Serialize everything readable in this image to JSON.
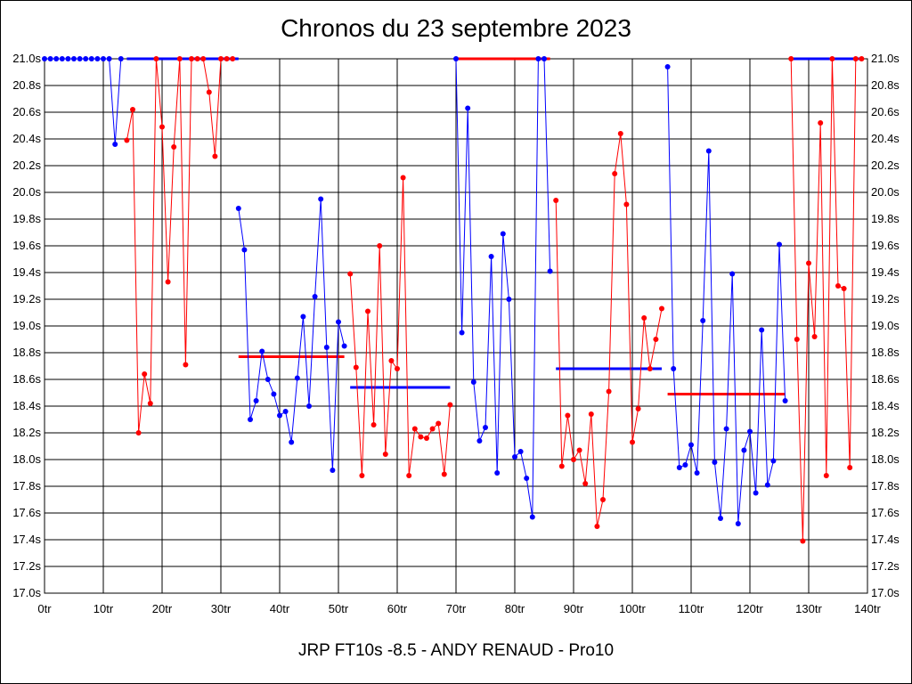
{
  "chart_data": {
    "type": "line",
    "title": "Chronos du 23 septembre 2023",
    "footer": "JRP FT10s -8.5 - ANDY RENAUD - Pro10",
    "xlabel": "",
    "ylabel": "",
    "x_unit_suffix": "tr",
    "y_unit_suffix": "s",
    "xlim": [
      0,
      140
    ],
    "ylim": [
      17.0,
      21.0
    ],
    "x_ticks": [
      "0tr",
      "10tr",
      "20tr",
      "30tr",
      "40tr",
      "50tr",
      "60tr",
      "70tr",
      "80tr",
      "90tr",
      "100tr",
      "110tr",
      "120tr",
      "130tr",
      "140tr"
    ],
    "y_ticks": [
      "17.0s",
      "17.2s",
      "17.4s",
      "17.6s",
      "17.8s",
      "18.0s",
      "18.2s",
      "18.4s",
      "18.6s",
      "18.8s",
      "19.0s",
      "19.2s",
      "19.4s",
      "19.6s",
      "19.8s",
      "20.0s",
      "20.2s",
      "20.4s",
      "20.6s",
      "20.8s",
      "21.0s"
    ],
    "grid": true,
    "colors": {
      "blue": "#0000ff",
      "red": "#ff0000"
    },
    "series": [
      {
        "color": "blue",
        "points": [
          [
            0,
            21.0
          ],
          [
            1,
            21.0
          ],
          [
            2,
            21.0
          ],
          [
            3,
            21.0
          ],
          [
            4,
            21.0
          ],
          [
            5,
            21.0
          ],
          [
            6,
            21.0
          ],
          [
            7,
            21.0
          ],
          [
            8,
            21.0
          ],
          [
            9,
            21.0
          ],
          [
            10,
            21.0
          ],
          [
            11,
            21.0
          ],
          [
            12,
            20.36
          ],
          [
            13,
            21.0
          ]
        ]
      },
      {
        "color": "red",
        "points": [
          [
            14,
            20.39
          ],
          [
            15,
            20.62
          ],
          [
            16,
            18.2
          ],
          [
            17,
            18.64
          ],
          [
            18,
            18.42
          ],
          [
            19,
            21.0
          ],
          [
            20,
            20.49
          ],
          [
            21,
            19.33
          ],
          [
            22,
            20.34
          ],
          [
            23,
            21.0
          ],
          [
            24,
            18.71
          ],
          [
            25,
            21.0
          ],
          [
            26,
            21.0
          ],
          [
            27,
            21.0
          ],
          [
            28,
            20.75
          ],
          [
            29,
            20.27
          ],
          [
            30,
            21.0
          ],
          [
            31,
            21.0
          ],
          [
            32,
            21.0
          ]
        ]
      },
      {
        "color": "blue",
        "points": [
          [
            33,
            19.88
          ],
          [
            34,
            19.57
          ],
          [
            35,
            18.3
          ],
          [
            36,
            18.44
          ],
          [
            37,
            18.81
          ],
          [
            38,
            18.6
          ],
          [
            39,
            18.49
          ],
          [
            40,
            18.33
          ],
          [
            41,
            18.36
          ],
          [
            42,
            18.13
          ],
          [
            43,
            18.61
          ],
          [
            44,
            19.07
          ],
          [
            45,
            18.4
          ],
          [
            46,
            19.22
          ],
          [
            47,
            19.95
          ],
          [
            48,
            18.84
          ],
          [
            49,
            17.92
          ],
          [
            50,
            19.03
          ],
          [
            51,
            18.85
          ]
        ]
      },
      {
        "color": "red",
        "points": [
          [
            52,
            19.39
          ],
          [
            53,
            18.69
          ],
          [
            54,
            17.88
          ],
          [
            55,
            19.11
          ],
          [
            56,
            18.26
          ],
          [
            57,
            19.6
          ],
          [
            58,
            18.04
          ],
          [
            59,
            18.74
          ],
          [
            60,
            18.68
          ],
          [
            61,
            20.11
          ],
          [
            62,
            17.88
          ],
          [
            63,
            18.23
          ],
          [
            64,
            18.17
          ],
          [
            65,
            18.16
          ],
          [
            66,
            18.23
          ],
          [
            67,
            18.27
          ],
          [
            68,
            17.89
          ],
          [
            69,
            18.41
          ]
        ]
      },
      {
        "color": "blue",
        "points": [
          [
            70,
            21.0
          ],
          [
            71,
            18.95
          ],
          [
            72,
            20.63
          ],
          [
            73,
            18.58
          ],
          [
            74,
            18.14
          ],
          [
            75,
            18.24
          ],
          [
            76,
            19.52
          ],
          [
            77,
            17.9
          ],
          [
            78,
            19.69
          ],
          [
            79,
            19.2
          ],
          [
            80,
            18.02
          ],
          [
            81,
            18.06
          ],
          [
            82,
            17.86
          ],
          [
            83,
            17.57
          ],
          [
            84,
            21.0
          ],
          [
            85,
            21.0
          ],
          [
            86,
            19.41
          ]
        ]
      },
      {
        "color": "red",
        "points": [
          [
            87,
            19.94
          ],
          [
            88,
            17.95
          ],
          [
            89,
            18.33
          ],
          [
            90,
            18.0
          ],
          [
            91,
            18.07
          ],
          [
            92,
            17.82
          ],
          [
            93,
            18.34
          ],
          [
            94,
            17.5
          ],
          [
            95,
            17.7
          ],
          [
            96,
            18.51
          ],
          [
            97,
            20.14
          ],
          [
            98,
            20.44
          ],
          [
            99,
            19.91
          ],
          [
            100,
            18.13
          ],
          [
            101,
            18.38
          ],
          [
            102,
            19.06
          ],
          [
            103,
            18.68
          ],
          [
            104,
            18.9
          ],
          [
            105,
            19.13
          ]
        ]
      },
      {
        "color": "blue",
        "points": [
          [
            106,
            20.94
          ],
          [
            107,
            18.68
          ],
          [
            108,
            17.94
          ],
          [
            109,
            17.96
          ],
          [
            110,
            18.11
          ],
          [
            111,
            17.9
          ],
          [
            112,
            19.04
          ],
          [
            113,
            20.31
          ],
          [
            114,
            17.98
          ],
          [
            115,
            17.56
          ],
          [
            116,
            18.23
          ],
          [
            117,
            19.39
          ],
          [
            118,
            17.52
          ],
          [
            119,
            18.07
          ],
          [
            120,
            18.21
          ],
          [
            121,
            17.75
          ],
          [
            122,
            18.97
          ],
          [
            123,
            17.81
          ],
          [
            124,
            17.99
          ],
          [
            125,
            19.61
          ],
          [
            126,
            18.44
          ]
        ]
      },
      {
        "color": "red",
        "points": [
          [
            127,
            21.0
          ],
          [
            128,
            18.9
          ],
          [
            129,
            17.39
          ],
          [
            130,
            19.47
          ],
          [
            131,
            18.92
          ],
          [
            132,
            20.52
          ],
          [
            133,
            17.88
          ],
          [
            134,
            21.0
          ],
          [
            135,
            19.3
          ],
          [
            136,
            19.28
          ],
          [
            137,
            17.94
          ],
          [
            138,
            21.0
          ],
          [
            139,
            21.0
          ]
        ]
      }
    ],
    "average_lines": [
      {
        "color": "blue",
        "x": [
          14,
          33
        ],
        "y": 21.0
      },
      {
        "color": "red",
        "x": [
          70,
          86
        ],
        "y": 21.0
      },
      {
        "color": "blue",
        "x": [
          127,
          139
        ],
        "y": 21.0
      },
      {
        "color": "red",
        "x": [
          33,
          51
        ],
        "y": 18.77
      },
      {
        "color": "blue",
        "x": [
          52,
          69
        ],
        "y": 18.54
      },
      {
        "color": "blue",
        "x": [
          87,
          105
        ],
        "y": 18.68
      },
      {
        "color": "red",
        "x": [
          106,
          126
        ],
        "y": 18.49
      }
    ]
  }
}
